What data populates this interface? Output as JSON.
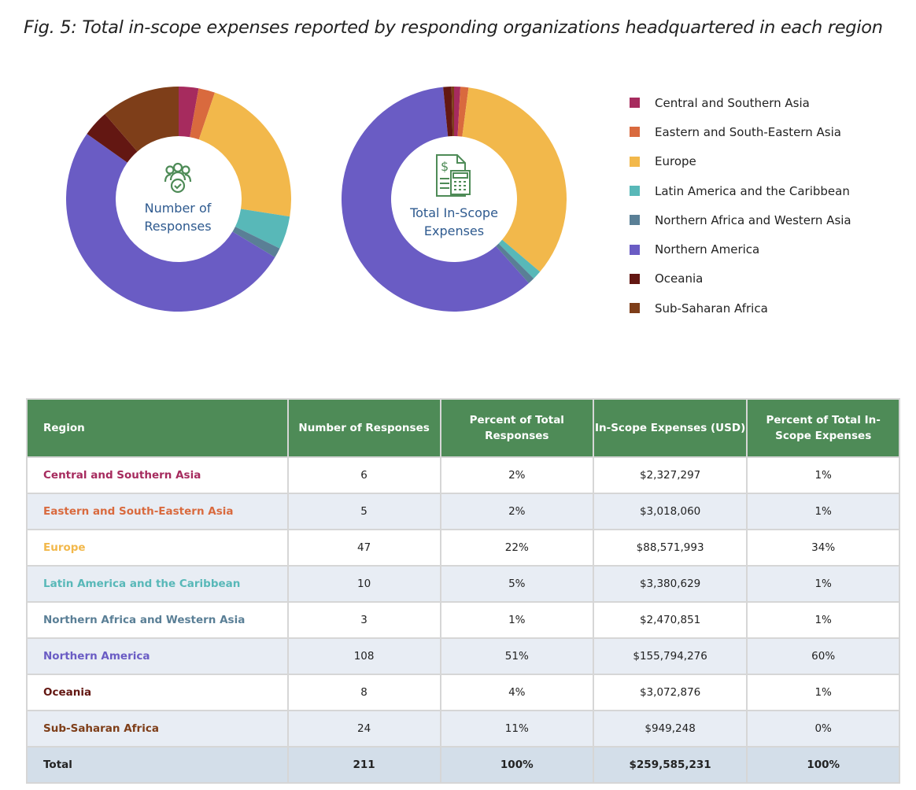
{
  "title": "Fig. 5: Total in-scope expenses reported by responding organizations headquartered in each region",
  "chart_data": [
    {
      "type": "pie",
      "title": "Number of Responses",
      "icon": "people-check-icon",
      "categories": [
        "Central and Southern Asia",
        "Eastern and South-Eastern Asia",
        "Europe",
        "Latin America and the Caribbean",
        "Northern Africa and Western Asia",
        "Northern America",
        "Oceania",
        "Sub-Saharan Africa"
      ],
      "values": [
        6,
        5,
        47,
        10,
        3,
        108,
        8,
        24
      ]
    },
    {
      "type": "pie",
      "title": "Total In-Scope Expenses",
      "icon": "invoice-calculator-icon",
      "categories": [
        "Central and Southern Asia",
        "Eastern and South-Eastern Asia",
        "Europe",
        "Latin America and the Caribbean",
        "Northern Africa and Western Asia",
        "Northern America",
        "Oceania",
        "Sub-Saharan Africa"
      ],
      "values": [
        2327297,
        3018060,
        88571993,
        3380629,
        2470851,
        155794276,
        3072876,
        949248
      ]
    }
  ],
  "colors": [
    "#a62b5e",
    "#d96a3e",
    "#f2b84b",
    "#58b8b8",
    "#5a7f96",
    "#6a5cc4",
    "#631712",
    "#7e3e19"
  ],
  "legend": [
    "Central and Southern Asia",
    "Eastern and South-Eastern Asia",
    "Europe",
    "Latin America and the Caribbean",
    "Northern Africa and Western Asia",
    "Northern America",
    "Oceania",
    "Sub-Saharan Africa"
  ],
  "center1": [
    "Number of",
    "Responses"
  ],
  "center2": [
    "Total In-Scope",
    "Expenses"
  ],
  "table": {
    "headers": [
      "Region",
      "Number of Responses",
      "Percent of Total Responses",
      "In-Scope Expenses (USD)",
      "Percent of Total In-Scope Expenses"
    ],
    "rows": [
      [
        "Central and Southern Asia",
        "6",
        "2%",
        "$2,327,297",
        "1%"
      ],
      [
        "Eastern and South-Eastern Asia",
        "5",
        "2%",
        "$3,018,060",
        "1%"
      ],
      [
        "Europe",
        "47",
        "22%",
        "$88,571,993",
        "34%"
      ],
      [
        "Latin America and the Caribbean",
        "10",
        "5%",
        "$3,380,629",
        "1%"
      ],
      [
        "Northern Africa and Western Asia",
        "3",
        "1%",
        "$2,470,851",
        "1%"
      ],
      [
        "Northern America",
        "108",
        "51%",
        "$155,794,276",
        "60%"
      ],
      [
        "Oceania",
        "8",
        "4%",
        "$3,072,876",
        "1%"
      ],
      [
        "Sub-Saharan Africa",
        "24",
        "11%",
        "$949,248",
        "0%"
      ]
    ],
    "total": [
      "Total",
      "211",
      "100%",
      "$259,585,231",
      "100%"
    ]
  }
}
